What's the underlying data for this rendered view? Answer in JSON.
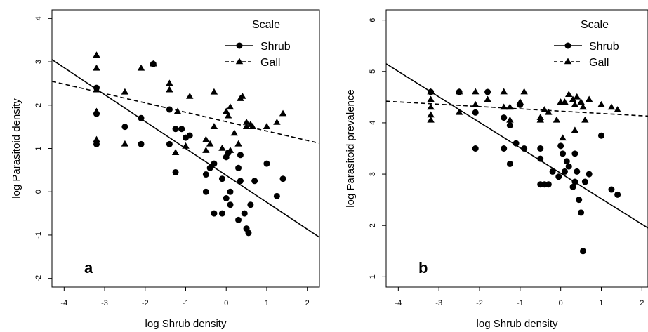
{
  "chart_data": [
    {
      "type": "scatter",
      "panel_label": "a",
      "xlabel": "log Shrub density",
      "ylabel": "log Parasitoid density",
      "xlim": [
        -4.3,
        2.3
      ],
      "ylim": [
        -2.2,
        4.2
      ],
      "xticks": [
        -4,
        -3,
        -2,
        -1,
        0,
        1,
        2
      ],
      "yticks": [
        -2,
        -1,
        0,
        1,
        2,
        3,
        4
      ],
      "legend": {
        "title": "Scale",
        "placement": "top-right"
      },
      "series": [
        {
          "name": "Shrub",
          "marker": "circle",
          "line_style": "solid",
          "fit": {
            "x": [
              -4.3,
              2.3
            ],
            "y": [
              3.05,
              -1.05
            ]
          },
          "points": [
            [
              -3.2,
              2.4
            ],
            [
              -3.2,
              1.8
            ],
            [
              -3.2,
              1.1
            ],
            [
              -2.5,
              1.5
            ],
            [
              -2.1,
              1.1
            ],
            [
              -2.1,
              1.7
            ],
            [
              -1.8,
              2.95
            ],
            [
              -1.4,
              1.9
            ],
            [
              -1.4,
              1.1
            ],
            [
              -1.25,
              1.45
            ],
            [
              -1.1,
              1.45
            ],
            [
              -1.0,
              1.25
            ],
            [
              -1.25,
              0.45
            ],
            [
              -0.9,
              1.3
            ],
            [
              -0.5,
              0.4
            ],
            [
              -0.5,
              0.0
            ],
            [
              -0.4,
              0.55
            ],
            [
              -0.3,
              0.65
            ],
            [
              -0.3,
              -0.5
            ],
            [
              -0.1,
              -0.5
            ],
            [
              0.0,
              0.8
            ],
            [
              0.05,
              0.9
            ],
            [
              0.1,
              0.0
            ],
            [
              0.1,
              -0.3
            ],
            [
              0.3,
              0.55
            ],
            [
              0.35,
              0.25
            ],
            [
              0.35,
              0.85
            ],
            [
              0.3,
              -0.65
            ],
            [
              0.45,
              -0.5
            ],
            [
              0.5,
              -0.85
            ],
            [
              0.55,
              -0.95
            ],
            [
              0.6,
              -0.3
            ],
            [
              0.7,
              0.25
            ],
            [
              1.0,
              0.65
            ],
            [
              1.25,
              -0.1
            ],
            [
              1.4,
              0.3
            ],
            [
              0.0,
              -0.15
            ],
            [
              -0.1,
              0.3
            ]
          ]
        },
        {
          "name": "Gall",
          "marker": "triangle",
          "line_style": "dashed",
          "fit": {
            "x": [
              -4.3,
              2.3
            ],
            "y": [
              2.55,
              1.12
            ]
          },
          "points": [
            [
              -3.2,
              3.15
            ],
            [
              -3.2,
              2.85
            ],
            [
              -3.2,
              2.35
            ],
            [
              -3.2,
              1.85
            ],
            [
              -3.2,
              1.2
            ],
            [
              -2.5,
              2.3
            ],
            [
              -2.5,
              1.1
            ],
            [
              -2.1,
              2.85
            ],
            [
              -1.8,
              2.95
            ],
            [
              -1.4,
              2.5
            ],
            [
              -1.4,
              2.35
            ],
            [
              -1.2,
              1.85
            ],
            [
              -1.25,
              0.9
            ],
            [
              -1.0,
              1.05
            ],
            [
              -0.9,
              2.2
            ],
            [
              -0.5,
              1.2
            ],
            [
              -0.4,
              1.1
            ],
            [
              -0.3,
              2.3
            ],
            [
              -0.3,
              1.5
            ],
            [
              -0.1,
              1.0
            ],
            [
              0.0,
              1.85
            ],
            [
              0.05,
              1.75
            ],
            [
              0.1,
              1.95
            ],
            [
              0.2,
              1.35
            ],
            [
              0.3,
              1.1
            ],
            [
              0.35,
              2.15
            ],
            [
              0.4,
              2.2
            ],
            [
              0.5,
              1.5
            ],
            [
              0.5,
              1.6
            ],
            [
              0.6,
              1.55
            ],
            [
              0.65,
              1.5
            ],
            [
              1.0,
              1.5
            ],
            [
              1.25,
              1.6
            ],
            [
              1.4,
              1.8
            ],
            [
              -0.5,
              0.95
            ],
            [
              0.1,
              0.95
            ]
          ]
        }
      ]
    },
    {
      "type": "scatter",
      "panel_label": "b",
      "xlabel": "log Shrub density",
      "ylabel": "log Parasitoid prevalence",
      "xlim": [
        -4.3,
        2.15
      ],
      "ylim": [
        0.8,
        6.2
      ],
      "xticks": [
        -4,
        -3,
        -2,
        -1,
        0,
        1,
        2
      ],
      "yticks": [
        1,
        2,
        3,
        4,
        5,
        6
      ],
      "legend": {
        "title": "Scale",
        "placement": "top-right"
      },
      "series": [
        {
          "name": "Shrub",
          "marker": "circle",
          "line_style": "solid",
          "fit": {
            "x": [
              -4.3,
              2.15
            ],
            "y": [
              5.15,
              1.95
            ]
          },
          "points": [
            [
              -3.2,
              4.6
            ],
            [
              -2.5,
              4.6
            ],
            [
              -2.1,
              4.2
            ],
            [
              -2.1,
              3.5
            ],
            [
              -1.8,
              4.6
            ],
            [
              -1.4,
              4.1
            ],
            [
              -1.4,
              3.5
            ],
            [
              -1.25,
              3.95
            ],
            [
              -1.25,
              3.2
            ],
            [
              -1.1,
              3.6
            ],
            [
              -1.0,
              4.35
            ],
            [
              -0.9,
              3.5
            ],
            [
              -0.5,
              3.5
            ],
            [
              -0.5,
              3.3
            ],
            [
              -0.4,
              2.8
            ],
            [
              -0.3,
              2.8
            ],
            [
              -0.2,
              3.05
            ],
            [
              -0.05,
              2.95
            ],
            [
              0.0,
              3.55
            ],
            [
              0.05,
              3.4
            ],
            [
              0.1,
              3.05
            ],
            [
              0.15,
              3.25
            ],
            [
              0.2,
              3.15
            ],
            [
              0.3,
              2.75
            ],
            [
              0.35,
              2.85
            ],
            [
              0.35,
              3.4
            ],
            [
              0.4,
              3.05
            ],
            [
              0.45,
              2.5
            ],
            [
              0.5,
              2.25
            ],
            [
              0.55,
              1.5
            ],
            [
              0.6,
              2.85
            ],
            [
              0.7,
              3.0
            ],
            [
              1.0,
              3.75
            ],
            [
              1.25,
              2.7
            ],
            [
              1.4,
              2.6
            ],
            [
              -0.5,
              2.8
            ]
          ]
        },
        {
          "name": "Gall",
          "marker": "triangle",
          "line_style": "dashed",
          "fit": {
            "x": [
              -4.3,
              2.15
            ],
            "y": [
              4.42,
              4.13
            ]
          },
          "points": [
            [
              -3.2,
              4.6
            ],
            [
              -3.2,
              4.45
            ],
            [
              -3.2,
              4.3
            ],
            [
              -3.2,
              4.15
            ],
            [
              -3.2,
              4.05
            ],
            [
              -2.5,
              4.6
            ],
            [
              -2.5,
              4.2
            ],
            [
              -2.1,
              4.6
            ],
            [
              -2.1,
              4.35
            ],
            [
              -1.8,
              4.45
            ],
            [
              -1.4,
              4.6
            ],
            [
              -1.4,
              4.3
            ],
            [
              -1.25,
              4.3
            ],
            [
              -1.25,
              4.05
            ],
            [
              -1.0,
              4.4
            ],
            [
              -0.9,
              4.6
            ],
            [
              -0.5,
              4.1
            ],
            [
              -0.5,
              4.05
            ],
            [
              -0.4,
              4.25
            ],
            [
              -0.3,
              4.2
            ],
            [
              -0.1,
              4.05
            ],
            [
              0.0,
              4.4
            ],
            [
              0.05,
              3.7
            ],
            [
              0.1,
              4.4
            ],
            [
              0.2,
              4.55
            ],
            [
              0.3,
              4.45
            ],
            [
              0.35,
              3.85
            ],
            [
              0.35,
              4.35
            ],
            [
              0.4,
              4.5
            ],
            [
              0.5,
              4.4
            ],
            [
              0.55,
              4.3
            ],
            [
              0.6,
              4.05
            ],
            [
              0.7,
              4.45
            ],
            [
              1.0,
              4.35
            ],
            [
              1.25,
              4.3
            ],
            [
              1.4,
              4.25
            ]
          ]
        }
      ]
    }
  ]
}
